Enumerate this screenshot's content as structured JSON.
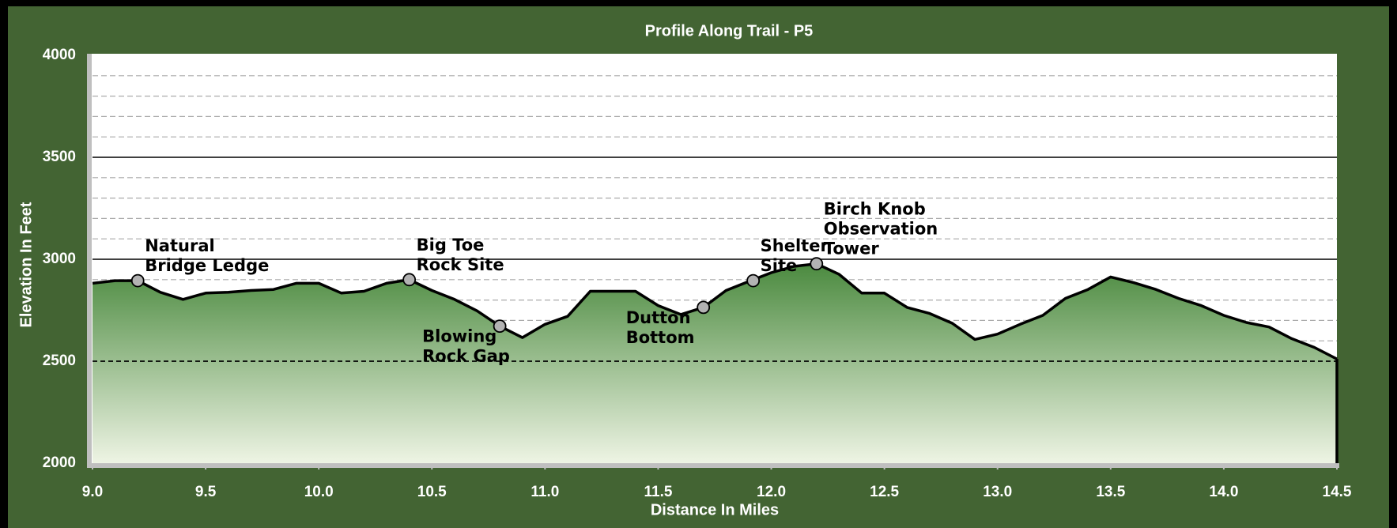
{
  "chart_data": {
    "type": "area",
    "title": "Profile Along Trail - P5",
    "x_label": "Distance In Miles",
    "y_label": "Elevation In Feet",
    "x": [
      9.0,
      9.1,
      9.2,
      9.3,
      9.4,
      9.5,
      9.6,
      9.7,
      9.8,
      9.9,
      10.0,
      10.1,
      10.2,
      10.3,
      10.4,
      10.5,
      10.6,
      10.7,
      10.8,
      10.9,
      11.0,
      11.1,
      11.2,
      11.3,
      11.4,
      11.5,
      11.6,
      11.7,
      11.8,
      11.9,
      12.0,
      12.1,
      12.2,
      12.3,
      12.4,
      12.5,
      12.6,
      12.7,
      12.8,
      12.9,
      13.0,
      13.1,
      13.2,
      13.3,
      13.4,
      13.5,
      13.6,
      13.7,
      13.8,
      13.9,
      14.0,
      14.1,
      14.2,
      14.3,
      14.4,
      14.5
    ],
    "values": [
      2882,
      2895,
      2895,
      2838,
      2803,
      2834,
      2838,
      2847,
      2852,
      2882,
      2882,
      2834,
      2843,
      2882,
      2900,
      2847,
      2803,
      2747,
      2672,
      2616,
      2681,
      2720,
      2843,
      2843,
      2843,
      2773,
      2729,
      2764,
      2847,
      2891,
      2934,
      2965,
      2978,
      2926,
      2834,
      2834,
      2764,
      2734,
      2686,
      2607,
      2633,
      2681,
      2725,
      2808,
      2852,
      2913,
      2886,
      2852,
      2808,
      2773,
      2725,
      2690,
      2668,
      2611,
      2568,
      2511
    ],
    "line_color": "#000000",
    "fill_top_color": "#4b8a3f",
    "fill_bottom_color": "#eef4e4",
    "xlim": [
      9.0,
      14.5
    ],
    "xticks": [
      {
        "value": 9,
        "label": "9.0"
      },
      9.5,
      {
        "value": 10,
        "label": "10.0"
      },
      10.5,
      {
        "value": 11,
        "label": "11.0"
      },
      11.5,
      {
        "value": 12,
        "label": "12.0"
      },
      12.5,
      {
        "value": 13,
        "label": "13.0"
      },
      13.5,
      {
        "value": 14,
        "label": "14.0"
      },
      14.5
    ],
    "ylim": [
      2000,
      4000
    ],
    "yticks": [
      2000,
      2500,
      3000,
      3500,
      4000
    ],
    "minor_yticks": [
      2100,
      2200,
      2300,
      2400,
      2600,
      2700,
      2800,
      2900,
      3100,
      3200,
      3300,
      3400,
      3600,
      3700,
      3800,
      3900
    ],
    "baseline": 2500,
    "grid": true,
    "annotations": [
      {
        "lines": [
          "Natural",
          "Bridge Ledge"
        ],
        "x": 9.2,
        "y": 2895,
        "placement": "above"
      },
      {
        "lines": [
          "Big Toe",
          "Rock Site"
        ],
        "x": 10.4,
        "y": 2900,
        "placement": "above"
      },
      {
        "lines": [
          "Blowing",
          "Rock Gap"
        ],
        "x": 10.8,
        "y": 2672,
        "placement": "below"
      },
      {
        "lines": [
          "Dutton",
          "Bottom"
        ],
        "x": 11.7,
        "y": 2764,
        "placement": "below"
      },
      {
        "lines": [
          "Shelter",
          "Site"
        ],
        "x": 11.92,
        "y": 2895,
        "placement": "above"
      },
      {
        "lines": [
          "Birch Knob",
          "Observation",
          "Tower"
        ],
        "x": 12.2,
        "y": 2978,
        "placement": "above"
      }
    ]
  }
}
